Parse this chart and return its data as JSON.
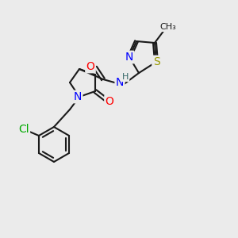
{
  "bg_color": "#ebebeb",
  "bond_color": "#1a1a1a",
  "bond_lw": 1.5,
  "atom_colors": {
    "O": "#ff0000",
    "N": "#0000ff",
    "S": "#999900",
    "Cl": "#00aa00",
    "C": "#1a1a1a",
    "H": "#336666"
  },
  "font_size": 9,
  "title_font_size": 7
}
